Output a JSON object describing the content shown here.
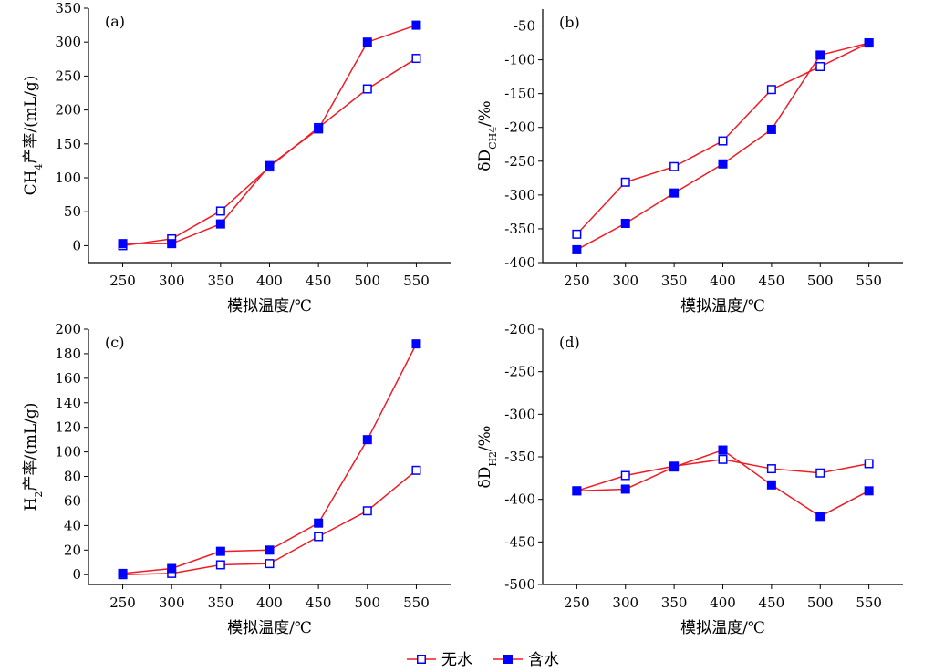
{
  "colors": {
    "line": "#ee1c24",
    "marker": "#0000ff",
    "axis": "#000000"
  },
  "legend": {
    "placement": "bottom-center",
    "items": [
      {
        "label": "无水",
        "marker": "open-square"
      },
      {
        "label": "含水",
        "marker": "filled-square"
      }
    ]
  },
  "chart_data": [
    {
      "panel": "(a)",
      "type": "line",
      "x": [
        250,
        300,
        350,
        400,
        450,
        500,
        550
      ],
      "xlabel": "模拟温度/℃",
      "ylabel": {
        "main": "CH",
        "sub": "4",
        "tail": "产率/(mL/g)"
      },
      "xlim": [
        215,
        585
      ],
      "ylim": [
        -25,
        350
      ],
      "yticks": [
        0,
        50,
        100,
        150,
        200,
        250,
        300,
        350
      ],
      "grid": false,
      "series": [
        {
          "name": "无水",
          "marker": "open-square",
          "values": [
            0,
            10,
            51,
            116,
            174,
            231,
            276
          ]
        },
        {
          "name": "含水",
          "marker": "filled-square",
          "values": [
            3,
            3,
            32,
            118,
            172,
            300,
            325
          ]
        }
      ]
    },
    {
      "panel": "(b)",
      "type": "line",
      "x": [
        250,
        300,
        350,
        400,
        450,
        500,
        550
      ],
      "xlabel": "模拟温度/℃",
      "ylabel": {
        "main": "δD",
        "sub": "CH4",
        "tail": "/‰"
      },
      "xlim": [
        215,
        585
      ],
      "ylim": [
        -400,
        -25
      ],
      "yticks": [
        -400,
        -350,
        -300,
        -250,
        -200,
        -150,
        -100,
        -50
      ],
      "grid": false,
      "series": [
        {
          "name": "无水",
          "marker": "open-square",
          "values": [
            -358,
            -281,
            -258,
            -220,
            -144,
            -110,
            -75
          ]
        },
        {
          "name": "含水",
          "marker": "filled-square",
          "values": [
            -381,
            -342,
            -297,
            -254,
            -203,
            -93,
            -75
          ]
        }
      ]
    },
    {
      "panel": "(c)",
      "type": "line",
      "x": [
        250,
        300,
        350,
        400,
        450,
        500,
        550
      ],
      "xlabel": "模拟温度/℃",
      "ylabel": {
        "main": "H",
        "sub": "2",
        "tail": "产率/(mL/g)"
      },
      "xlim": [
        215,
        585
      ],
      "ylim": [
        -8,
        200
      ],
      "yticks": [
        0,
        20,
        40,
        60,
        80,
        100,
        120,
        140,
        160,
        180,
        200
      ],
      "grid": false,
      "series": [
        {
          "name": "无水",
          "marker": "open-square",
          "values": [
            0,
            1,
            8,
            9,
            31,
            52,
            85
          ]
        },
        {
          "name": "含水",
          "marker": "filled-square",
          "values": [
            1,
            5,
            19,
            20,
            42,
            110,
            188
          ]
        }
      ]
    },
    {
      "panel": "(d)",
      "type": "line",
      "x": [
        250,
        300,
        350,
        400,
        450,
        500,
        550
      ],
      "xlabel": "模拟温度/℃",
      "ylabel": {
        "main": "δD",
        "sub": "H2",
        "tail": "/‰"
      },
      "xlim": [
        215,
        585
      ],
      "ylim": [
        -500,
        -200
      ],
      "yticks": [
        -500,
        -450,
        -400,
        -350,
        -300,
        -250,
        -200
      ],
      "grid": false,
      "series": [
        {
          "name": "无水",
          "marker": "open-square",
          "values": [
            -390,
            -372,
            -361,
            -353,
            -364,
            -369,
            -358
          ]
        },
        {
          "name": "含水",
          "marker": "filled-square",
          "values": [
            -390,
            -388,
            -362,
            -342,
            -383,
            -420,
            -390
          ]
        }
      ]
    }
  ]
}
